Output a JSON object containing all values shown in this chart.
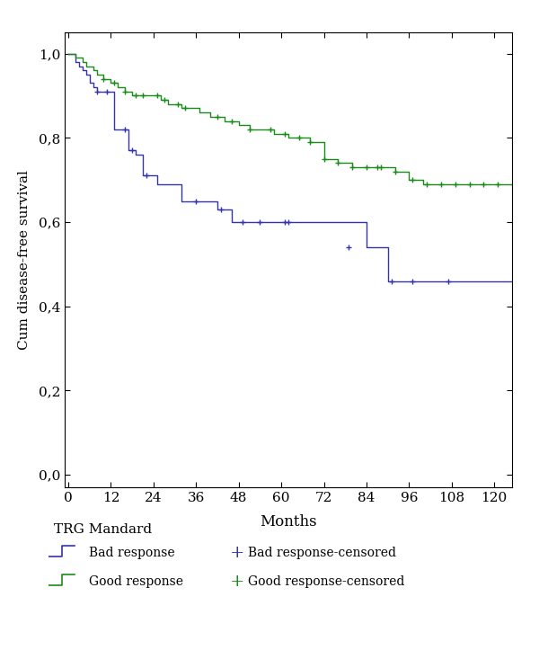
{
  "title": "",
  "xlabel": "Months",
  "ylabel": "Cum disease-free survival",
  "xlim": [
    -1,
    125
  ],
  "ylim": [
    -0.03,
    1.05
  ],
  "xticks": [
    0,
    12,
    24,
    36,
    48,
    60,
    72,
    84,
    96,
    108,
    120
  ],
  "yticks": [
    0.0,
    0.2,
    0.4,
    0.6,
    0.8,
    1.0
  ],
  "ytick_labels": [
    "0,0",
    "0,2",
    "0,4",
    "0,6",
    "0,8",
    "1,0"
  ],
  "legend_title": "TRG Mandard",
  "bad_color": "#3333aa",
  "good_color": "#1a8a1a",
  "bad_step_times": [
    0,
    1,
    2,
    3,
    4,
    5,
    6,
    7,
    8,
    9,
    10,
    11,
    12,
    13,
    14,
    15,
    16,
    17,
    18,
    19,
    20,
    21,
    22,
    23,
    24,
    25,
    26,
    27,
    28,
    32,
    36,
    37,
    40,
    42,
    44,
    46,
    48,
    50,
    53,
    56,
    60,
    63,
    66,
    72,
    84,
    90,
    96,
    105,
    125
  ],
  "bad_step_surv": [
    1.0,
    1.0,
    0.98,
    0.97,
    0.96,
    0.95,
    0.93,
    0.92,
    0.91,
    0.91,
    0.91,
    0.91,
    0.91,
    0.82,
    0.82,
    0.82,
    0.82,
    0.77,
    0.77,
    0.76,
    0.76,
    0.71,
    0.71,
    0.71,
    0.71,
    0.69,
    0.69,
    0.69,
    0.69,
    0.65,
    0.65,
    0.65,
    0.65,
    0.63,
    0.63,
    0.6,
    0.6,
    0.6,
    0.6,
    0.6,
    0.6,
    0.6,
    0.6,
    0.6,
    0.54,
    0.46,
    0.46,
    0.46,
    0.46
  ],
  "good_step_times": [
    0,
    1,
    2,
    3,
    4,
    5,
    6,
    7,
    8,
    9,
    10,
    11,
    12,
    13,
    14,
    15,
    16,
    17,
    18,
    20,
    22,
    24,
    25,
    26,
    27,
    28,
    30,
    32,
    33,
    34,
    36,
    37,
    38,
    40,
    42,
    43,
    44,
    46,
    48,
    50,
    51,
    53,
    56,
    58,
    60,
    62,
    64,
    68,
    72,
    76,
    80,
    84,
    88,
    92,
    96,
    100,
    104,
    108,
    112,
    116,
    120,
    125
  ],
  "good_step_surv": [
    1.0,
    1.0,
    0.99,
    0.99,
    0.98,
    0.97,
    0.97,
    0.96,
    0.95,
    0.95,
    0.94,
    0.94,
    0.93,
    0.93,
    0.92,
    0.92,
    0.91,
    0.91,
    0.9,
    0.9,
    0.9,
    0.9,
    0.9,
    0.89,
    0.89,
    0.88,
    0.88,
    0.87,
    0.87,
    0.87,
    0.87,
    0.86,
    0.86,
    0.85,
    0.85,
    0.85,
    0.84,
    0.84,
    0.83,
    0.83,
    0.82,
    0.82,
    0.82,
    0.81,
    0.81,
    0.8,
    0.8,
    0.79,
    0.75,
    0.74,
    0.73,
    0.73,
    0.73,
    0.72,
    0.7,
    0.69,
    0.69,
    0.69,
    0.69,
    0.69,
    0.69,
    0.69
  ],
  "bad_censor_times": [
    8,
    11,
    16,
    18,
    22,
    36,
    43,
    49,
    54,
    61,
    62,
    79,
    91,
    97,
    107
  ],
  "bad_censor_surv": [
    0.91,
    0.91,
    0.82,
    0.77,
    0.71,
    0.65,
    0.63,
    0.6,
    0.6,
    0.6,
    0.6,
    0.54,
    0.46,
    0.46,
    0.46
  ],
  "good_censor_times": [
    10,
    13,
    16,
    19,
    21,
    25,
    27,
    31,
    33,
    42,
    46,
    51,
    57,
    61,
    65,
    68,
    72,
    76,
    80,
    84,
    87,
    88,
    92,
    97,
    101,
    105,
    109,
    113,
    117,
    121
  ],
  "good_censor_surv": [
    0.94,
    0.93,
    0.91,
    0.9,
    0.9,
    0.9,
    0.89,
    0.88,
    0.87,
    0.85,
    0.84,
    0.82,
    0.82,
    0.81,
    0.8,
    0.79,
    0.75,
    0.74,
    0.73,
    0.73,
    0.73,
    0.73,
    0.72,
    0.7,
    0.69,
    0.69,
    0.69,
    0.69,
    0.69,
    0.69
  ],
  "bg_color": "#ffffff",
  "axis_color": "#000000"
}
